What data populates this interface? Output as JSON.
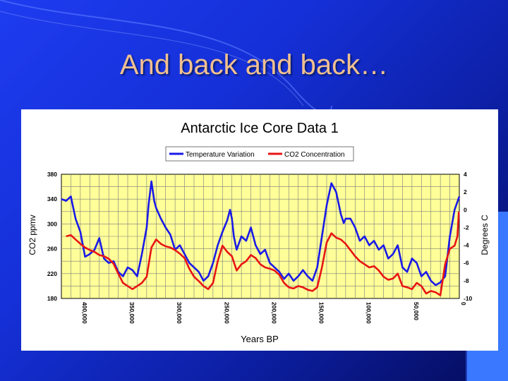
{
  "slide": {
    "title": "And back and back…"
  },
  "colors": {
    "temperature": "#1a1ae8",
    "co2": "#e81414",
    "plot_bg": "#ffff99",
    "title_text": "#f0c090"
  },
  "chart_data": {
    "type": "line",
    "title": "Antarctic Ice Core Data 1",
    "xlabel": "Years BP",
    "ylabel_left": "CO2 ppmv",
    "ylabel_right": "Degrees C",
    "x_reversed": true,
    "xlim": [
      420000,
      0
    ],
    "ylim_left": [
      180,
      380
    ],
    "ylim_right": [
      -10,
      4
    ],
    "x_ticks": [
      "400,000",
      "350,000",
      "300,000",
      "250,000",
      "200,000",
      "150,000",
      "100,000",
      "50,000",
      "0"
    ],
    "x_tick_values": [
      400000,
      350000,
      300000,
      250000,
      200000,
      150000,
      100000,
      50000,
      0
    ],
    "y_ticks_left": [
      "380",
      "340",
      "300",
      "260",
      "220",
      "180"
    ],
    "y_tick_values_left": [
      380,
      340,
      300,
      260,
      220,
      180
    ],
    "y_ticks_right": [
      "4",
      "2",
      "0",
      "-2",
      "-4",
      "-6",
      "-8",
      "-10"
    ],
    "y_tick_values_right": [
      4,
      2,
      0,
      -2,
      -4,
      -6,
      -8,
      -10
    ],
    "grid": true,
    "legend_position": "top",
    "series": [
      {
        "name": "Temperature Variation",
        "axis": "right",
        "x": [
          420000,
          415000,
          410000,
          405000,
          400000,
          395000,
          390000,
          385000,
          380000,
          375000,
          370000,
          365000,
          360000,
          355000,
          350000,
          345000,
          340000,
          335000,
          330000,
          328000,
          325000,
          322000,
          320000,
          315000,
          310000,
          305000,
          300000,
          295000,
          290000,
          285000,
          280000,
          275000,
          270000,
          265000,
          260000,
          255000,
          250000,
          245000,
          242000,
          240000,
          238000,
          235000,
          230000,
          225000,
          220000,
          215000,
          210000,
          205000,
          200000,
          195000,
          190000,
          185000,
          180000,
          175000,
          170000,
          165000,
          160000,
          155000,
          150000,
          145000,
          140000,
          135000,
          130000,
          128000,
          125000,
          122000,
          120000,
          115000,
          110000,
          105000,
          100000,
          95000,
          90000,
          85000,
          80000,
          75000,
          70000,
          65000,
          60000,
          55000,
          50000,
          45000,
          40000,
          35000,
          30000,
          25000,
          20000,
          15000,
          10000,
          5000,
          0
        ],
        "values": [
          1.2,
          1.0,
          1.5,
          -1.0,
          -2.5,
          -5.3,
          -5.0,
          -4.5,
          -3.2,
          -5.5,
          -6.0,
          -5.8,
          -7.0,
          -7.5,
          -6.5,
          -6.8,
          -7.5,
          -5.0,
          -2.0,
          0.5,
          3.2,
          1.0,
          0.2,
          -1.0,
          -2.0,
          -2.8,
          -4.5,
          -4.0,
          -5.0,
          -6.0,
          -6.5,
          -7.0,
          -8.0,
          -7.5,
          -6.0,
          -4.0,
          -2.5,
          -1.2,
          0.0,
          -1.0,
          -3.0,
          -4.5,
          -3.0,
          -3.5,
          -2.0,
          -4.0,
          -5.0,
          -4.5,
          -6.0,
          -6.5,
          -7.0,
          -7.8,
          -7.2,
          -8.0,
          -7.5,
          -6.8,
          -7.5,
          -8.0,
          -6.5,
          -3.0,
          0.5,
          3.0,
          2.0,
          1.0,
          -0.5,
          -1.5,
          -1.0,
          -1.0,
          -2.0,
          -3.5,
          -3.0,
          -4.0,
          -3.5,
          -4.5,
          -4.0,
          -5.5,
          -5.0,
          -4.0,
          -6.5,
          -7.0,
          -5.5,
          -6.0,
          -7.5,
          -7.0,
          -8.0,
          -8.5,
          -8.2,
          -7.5,
          -3.0,
          0.0,
          1.5
        ]
      },
      {
        "name": "CO2 Concentration",
        "axis": "left",
        "x": [
          415000,
          410000,
          405000,
          400000,
          395000,
          390000,
          385000,
          380000,
          375000,
          370000,
          365000,
          360000,
          355000,
          350000,
          345000,
          340000,
          335000,
          330000,
          325000,
          320000,
          315000,
          310000,
          305000,
          300000,
          295000,
          290000,
          285000,
          280000,
          275000,
          270000,
          265000,
          260000,
          255000,
          250000,
          245000,
          240000,
          235000,
          230000,
          225000,
          220000,
          215000,
          210000,
          205000,
          200000,
          195000,
          190000,
          185000,
          180000,
          175000,
          170000,
          165000,
          160000,
          155000,
          150000,
          145000,
          140000,
          135000,
          130000,
          125000,
          120000,
          115000,
          110000,
          105000,
          100000,
          95000,
          90000,
          85000,
          80000,
          75000,
          70000,
          65000,
          60000,
          55000,
          50000,
          45000,
          40000,
          35000,
          30000,
          25000,
          20000,
          15000,
          10000,
          5000,
          2000,
          500
        ],
        "values": [
          280,
          282,
          275,
          268,
          262,
          258,
          255,
          250,
          248,
          244,
          236,
          220,
          205,
          200,
          195,
          200,
          205,
          215,
          262,
          275,
          268,
          264,
          262,
          258,
          252,
          245,
          228,
          215,
          208,
          200,
          195,
          205,
          240,
          265,
          255,
          248,
          225,
          235,
          240,
          250,
          245,
          235,
          230,
          228,
          225,
          218,
          205,
          198,
          196,
          200,
          198,
          194,
          192,
          198,
          230,
          270,
          285,
          278,
          275,
          268,
          258,
          248,
          240,
          235,
          230,
          232,
          225,
          215,
          210,
          212,
          220,
          200,
          198,
          195,
          205,
          200,
          188,
          192,
          190,
          185,
          235,
          260,
          265,
          280,
          320
        ]
      }
    ]
  }
}
